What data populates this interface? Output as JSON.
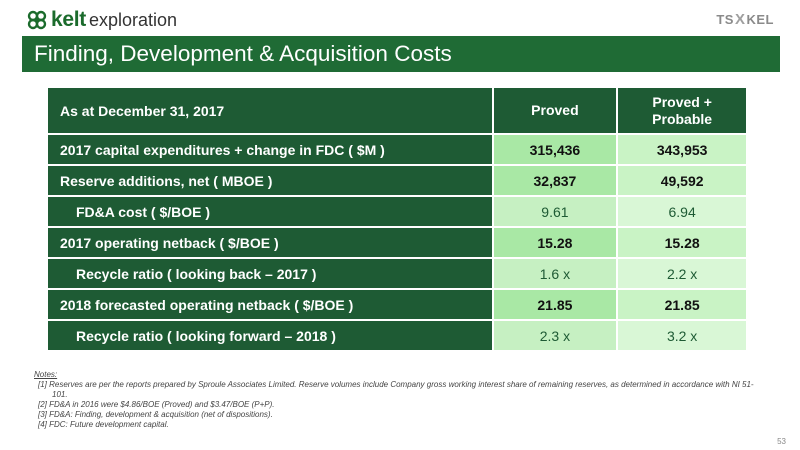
{
  "logo": {
    "brand": "kelt",
    "suffix": "exploration",
    "color": "#1b6b2c"
  },
  "exchange": {
    "part1": "TS",
    "part2": "X",
    "part3": "KEL"
  },
  "title": "Finding, Development & Acquisition Costs",
  "table": {
    "header": {
      "label": "As at December 31, 2017",
      "col1": "Proved",
      "col2_line1": "Proved +",
      "col2_line2": "Probable"
    },
    "rows": [
      {
        "label": "2017 capital expenditures + change in FDC ( $M )",
        "proved": "315,436",
        "probable": "343,953"
      },
      {
        "label": "Reserve additions, net ( MBOE )",
        "proved": "32,837",
        "probable": "49,592"
      },
      {
        "label": "FD&A cost ( $/BOE )",
        "proved": "9.61",
        "probable": "6.94"
      },
      {
        "label": "2017 operating netback ( $/BOE )",
        "proved": "15.28",
        "probable": "15.28"
      },
      {
        "label": "Recycle ratio ( looking back – 2017 )",
        "proved": "1.6 x",
        "probable": "2.2 x"
      },
      {
        "label": "2018 forecasted operating netback ( $/BOE )",
        "proved": "21.85",
        "probable": "21.85"
      },
      {
        "label": "Recycle ratio ( looking forward – 2018 )",
        "proved": "2.3 x",
        "probable": "3.2 x"
      }
    ]
  },
  "notes": {
    "heading": "Notes:",
    "items": [
      "[1] Reserves are per the reports prepared by Sproule Associates Limited. Reserve volumes include Company gross working interest share of remaining reserves, as determined in accordance with NI 51-101.",
      "[2] FD&A in 2016 were $4.86/BOE (Proved) and $3.47/BOE (P+P).",
      "[3] FD&A: Finding, development & acquisition (net of dispositions).",
      "[4] FDC: Future development capital."
    ]
  },
  "page_number": "53",
  "colors": {
    "title_bar": "#1f6b35",
    "header": "#1e5b34",
    "value_dark": "#a9e8a5",
    "value_light": "#d9f7d6"
  }
}
